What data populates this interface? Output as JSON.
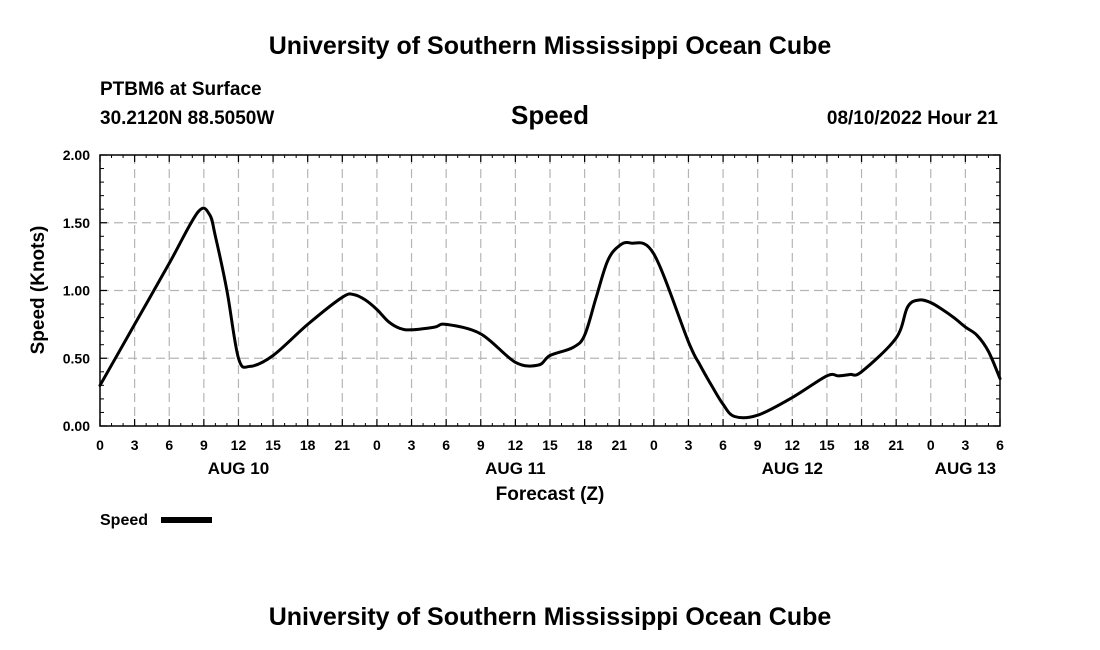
{
  "header": {
    "title": "University of Southern Mississippi Ocean Cube",
    "station": "PTBM6 at Surface",
    "coords": "30.2120N  88.5050W",
    "variable": "Speed",
    "datetime": "08/10/2022 Hour 21"
  },
  "footer": {
    "title": "University of Southern Mississippi Ocean Cube"
  },
  "chart_data": {
    "type": "line",
    "xlabel": "Forecast (Z)",
    "ylabel": "Speed (Knots)",
    "x_unit": "forecast hours from AUG 10 00Z",
    "xlim": [
      0,
      78
    ],
    "ylim": [
      0,
      2
    ],
    "grid": true,
    "legend_position": "bottom-left",
    "y_ticks": [
      "0.00",
      "0.50",
      "1.00",
      "1.50",
      "2.00"
    ],
    "y_tick_values": [
      0,
      0.5,
      1.0,
      1.5,
      2.0
    ],
    "x_tick_hours": [
      0,
      3,
      6,
      9,
      12,
      15,
      18,
      21,
      24,
      27,
      30,
      33,
      36,
      39,
      42,
      45,
      48,
      51,
      54,
      57,
      60,
      63,
      66,
      69,
      72,
      75,
      78
    ],
    "x_tick_labels": [
      "0",
      "3",
      "6",
      "9",
      "12",
      "15",
      "18",
      "21",
      "0",
      "3",
      "6",
      "9",
      "12",
      "15",
      "18",
      "21",
      "0",
      "3",
      "6",
      "9",
      "12",
      "15",
      "18",
      "21",
      "0",
      "3",
      "6"
    ],
    "date_labels": [
      {
        "label": "AUG 10",
        "hour": 12
      },
      {
        "label": "AUG 11",
        "hour": 36
      },
      {
        "label": "AUG 12",
        "hour": 60
      },
      {
        "label": "AUG 13",
        "hour": 75
      }
    ],
    "series": [
      {
        "name": "Speed",
        "color": "#000000",
        "x": [
          0,
          3,
          6,
          8.5,
          9.5,
          10,
          11,
          12,
          13,
          15,
          18,
          21,
          22,
          23,
          24,
          25,
          26,
          27,
          29,
          30,
          33,
          36,
          38,
          39,
          41,
          42,
          43,
          44,
          45,
          46,
          48,
          51,
          52,
          53,
          54,
          55,
          57,
          60,
          63,
          64,
          65,
          66,
          69,
          70,
          71,
          72,
          73,
          74,
          75,
          76,
          77,
          78
        ],
        "y": [
          0.3,
          0.75,
          1.2,
          1.58,
          1.56,
          1.4,
          1.0,
          0.5,
          0.44,
          0.52,
          0.75,
          0.95,
          0.97,
          0.93,
          0.86,
          0.77,
          0.72,
          0.71,
          0.73,
          0.75,
          0.68,
          0.47,
          0.45,
          0.52,
          0.58,
          0.67,
          0.95,
          1.22,
          1.33,
          1.35,
          1.27,
          0.62,
          0.45,
          0.3,
          0.16,
          0.07,
          0.08,
          0.21,
          0.37,
          0.37,
          0.38,
          0.4,
          0.65,
          0.88,
          0.93,
          0.91,
          0.86,
          0.8,
          0.73,
          0.67,
          0.55,
          0.35
        ]
      }
    ]
  }
}
